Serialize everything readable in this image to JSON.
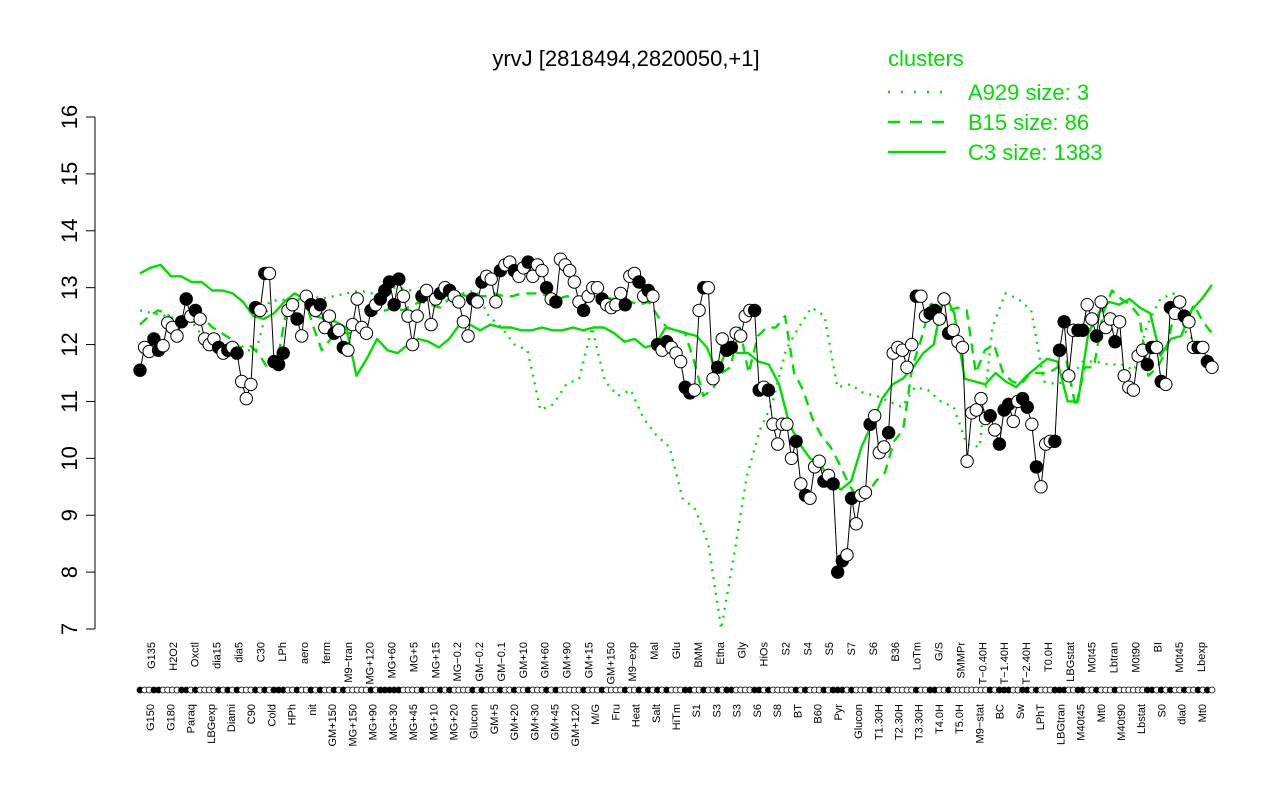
{
  "colors": {
    "series": "#00dd00",
    "points_filled": "#000000",
    "points_open": "#ffffff",
    "axis": "#000000"
  },
  "chart_data": {
    "type": "line",
    "title": "yrvJ [2818494,2820050,+1]",
    "xlabel": "",
    "ylabel": "",
    "ylim": [
      7,
      16
    ],
    "yticks": [
      7,
      8,
      9,
      10,
      11,
      12,
      13,
      14,
      15,
      16
    ],
    "legend": {
      "title": "clusters",
      "placement": "top-right",
      "entries": [
        {
          "label": "A929 size: 3",
          "style": "dotted"
        },
        {
          "label": "B15 size: 86",
          "style": "dashed"
        },
        {
          "label": "C3 size: 1383",
          "style": "solid"
        }
      ]
    },
    "x_tick_labels_top": [
      "G135",
      "H2O2",
      "Oxctl",
      "dia15",
      "dia5",
      "C30",
      "LPh",
      "aero",
      "ferm",
      "M9−tran",
      "MG+120",
      "MG+60",
      "MG+5",
      "MG+15",
      "MG−0.2",
      "GM−0.2",
      "GM−0.1",
      "GM+10",
      "GM+60",
      "GM+90",
      "GM+15",
      "GM+150",
      "M9−exp",
      "Mal",
      "Glu",
      "BMM",
      "Etha",
      "Gly",
      "HiOs",
      "S2",
      "S4",
      "S5",
      "S7",
      "S6",
      "B36",
      "LoTm",
      "G/S",
      "SMMPr",
      "T−0.40H",
      "T−1.40H",
      "T−2.40H",
      "T0.0H",
      "LBGstat",
      "M0t45",
      "Lbtran",
      "M0t90",
      "BI",
      "M0t45",
      "Lbexp"
    ],
    "x_tick_labels_bottom": [
      "G150",
      "G180",
      "Paraq",
      "LBGexp",
      "Diami",
      "C90",
      "Cold",
      "HPh",
      "nit",
      "GM+150",
      "MG+150",
      "MG+90",
      "MG+30",
      "MG+45",
      "MG+10",
      "MG+20",
      "Glucon",
      "GM+5",
      "GM+20",
      "GM+30",
      "GM+45",
      "GM+120",
      "M/G",
      "Fru",
      "Heat",
      "Salt",
      "HiTm",
      "S1",
      "S3",
      "S3",
      "S6",
      "S8",
      "BT",
      "B60",
      "Pyr",
      "Glucon",
      "T1.30H",
      "T2.30H",
      "T3.30H",
      "T4.0H",
      "T5.0H",
      "M9−stat",
      "BC",
      "Sw",
      "LPhT",
      "LBGtran",
      "M40t45",
      "Mt0",
      "M40t90",
      "Lbstat",
      "S0",
      "dia0",
      "Mt0"
    ],
    "samples": [
      11.55,
      11.95,
      11.88,
      12.1,
      11.9,
      11.98,
      12.38,
      12.3,
      12.15,
      12.4,
      12.8,
      12.5,
      12.6,
      12.45,
      12.1,
      12.0,
      12.1,
      11.95,
      11.85,
      11.9,
      11.95,
      11.85,
      11.35,
      11.05,
      11.3,
      12.65,
      12.6,
      13.25,
      13.25,
      11.7,
      11.65,
      11.85,
      12.6,
      12.7,
      12.45,
      12.15,
      12.85,
      12.7,
      12.6,
      12.7,
      12.3,
      12.5,
      12.2,
      12.25,
      11.95,
      11.9,
      12.35,
      12.8,
      12.3,
      12.2,
      12.6,
      12.7,
      12.8,
      12.95,
      13.1,
      12.7,
      13.15,
      12.85,
      12.5,
      12.0,
      12.5,
      12.85,
      12.95,
      12.35,
      12.8,
      12.9,
      13.0,
      12.95,
      12.85,
      12.75,
      12.4,
      12.15,
      12.8,
      12.75,
      13.1,
      13.2,
      13.15,
      12.75,
      13.3,
      13.4,
      13.45,
      13.3,
      13.2,
      13.35,
      13.45,
      13.2,
      13.4,
      13.3,
      13.0,
      12.8,
      12.75,
      13.5,
      13.4,
      13.3,
      13.1,
      12.75,
      12.6,
      12.85,
      13.0,
      13.0,
      12.8,
      12.7,
      12.65,
      12.7,
      12.9,
      12.7,
      13.2,
      13.25,
      13.1,
      12.85,
      12.95,
      12.85,
      12.0,
      11.9,
      12.05,
      11.95,
      11.85,
      11.7,
      11.25,
      11.15,
      11.2,
      12.6,
      13.0,
      13.0,
      11.4,
      11.6,
      12.1,
      11.9,
      11.95,
      12.2,
      12.15,
      12.5,
      12.6,
      12.6,
      11.2,
      11.25,
      11.2,
      10.6,
      10.25,
      10.6,
      10.6,
      10.0,
      10.3,
      9.55,
      9.35,
      9.3,
      9.85,
      9.95,
      9.6,
      9.7,
      9.55,
      8.0,
      8.2,
      8.3,
      9.3,
      8.85,
      9.35,
      9.4,
      10.6,
      10.75,
      10.1,
      10.2,
      10.45,
      11.85,
      11.95,
      11.9,
      11.6,
      12.0,
      12.85,
      12.85,
      12.5,
      12.55,
      12.6,
      12.45,
      12.8,
      12.2,
      12.25,
      12.05,
      11.95,
      9.95,
      10.8,
      10.85,
      11.05,
      10.7,
      10.75,
      10.5,
      10.25,
      10.85,
      10.95,
      10.65,
      11.0,
      11.05,
      10.9,
      10.6,
      9.85,
      9.5,
      10.25,
      10.3,
      10.3,
      11.9,
      12.4,
      11.45,
      12.25,
      12.25,
      12.25,
      12.7,
      12.45,
      12.15,
      12.75,
      12.3,
      12.45,
      12.05,
      12.4,
      11.45,
      11.25,
      11.2,
      11.8,
      11.9,
      11.65,
      11.95,
      11.95,
      11.35,
      11.3,
      12.65,
      12.55,
      12.75,
      12.5,
      12.4,
      11.95,
      11.95,
      11.95,
      11.7,
      11.6
    ],
    "open_markers": [
      1,
      2,
      5,
      6,
      7,
      8,
      11,
      13,
      14,
      15,
      16,
      18,
      20,
      22,
      23,
      24,
      26,
      28,
      32,
      33,
      35,
      36,
      38,
      40,
      41,
      43,
      45,
      46,
      47,
      48,
      49,
      51,
      57,
      58,
      59,
      60,
      62,
      63,
      64,
      66,
      68,
      69,
      70,
      71,
      73,
      75,
      76,
      77,
      79,
      80,
      82,
      83,
      85,
      86,
      87,
      89,
      91,
      92,
      93,
      94,
      95,
      97,
      98,
      99,
      101,
      102,
      103,
      104,
      106,
      107,
      109,
      111,
      113,
      115,
      116,
      117,
      120,
      121,
      123,
      124,
      126,
      129,
      130,
      131,
      132,
      135,
      137,
      138,
      139,
      140,
      141,
      143,
      145,
      146,
      147,
      149,
      153,
      155,
      156,
      157,
      159,
      160,
      161,
      163,
      164,
      165,
      166,
      167,
      169,
      170,
      173,
      174,
      176,
      177,
      178,
      179,
      180,
      181,
      182,
      183,
      185,
      189,
      190,
      193,
      195,
      196,
      197,
      201,
      202,
      205,
      206,
      208,
      209,
      210,
      212,
      213,
      214,
      215,
      216,
      217,
      220,
      222,
      224,
      225,
      227,
      228,
      230,
      232,
      233,
      234,
      235,
      236,
      237
    ],
    "cluster_B15": [
      12.35,
      12.5,
      12.6,
      12.55,
      12.3,
      12.4,
      12.4,
      12.45,
      12.3,
      12.2,
      12.1,
      11.95,
      12.0,
      11.85,
      11.6,
      11.6,
      12.5,
      12.7,
      12.9,
      12.35,
      11.9,
      12.1,
      12.2,
      12.2,
      12.3,
      12.5,
      12.55,
      12.6,
      12.65,
      12.6,
      12.7,
      12.75,
      12.7,
      12.65,
      12.8,
      12.9,
      12.85,
      12.85,
      12.85,
      12.9,
      12.85,
      12.85,
      12.9,
      12.9,
      12.9,
      12.85,
      12.8,
      12.85,
      12.8,
      12.8,
      12.85,
      12.85,
      12.8,
      12.8,
      12.75,
      12.7,
      12.75,
      12.5,
      12.3,
      12.25,
      12.2,
      11.7,
      11.1,
      11.2,
      11.5,
      11.6,
      12.3,
      11.5,
      12.15,
      12.3,
      12.3,
      12.5,
      11.5,
      11.2,
      10.7,
      10.4,
      10.2,
      9.9,
      9.55,
      9.3,
      9.35,
      9.6,
      9.75,
      10.3,
      10.5,
      11.6,
      12.1,
      12.7,
      12.8,
      12.6,
      12.65,
      12.6,
      11.5,
      11.9,
      12.0,
      11.5,
      11.35,
      11.3,
      11.5,
      11.5,
      11.5,
      11.6,
      11.7,
      10.9,
      11.6,
      11.6,
      12.55,
      12.95,
      12.8,
      12.7,
      12.5,
      11.45,
      11.6,
      11.9,
      12.7,
      12.3,
      12.7,
      12.4,
      12.2
    ],
    "cluster_C3": [
      13.25,
      13.35,
      13.4,
      13.2,
      13.2,
      13.1,
      13.1,
      12.95,
      12.95,
      12.9,
      12.75,
      12.5,
      12.45,
      12.55,
      12.75,
      12.9,
      12.8,
      12.5,
      12.45,
      12.4,
      12.3,
      11.45,
      11.75,
      12.1,
      11.9,
      11.85,
      12.0,
      12.1,
      12.05,
      11.95,
      12.1,
      12.35,
      12.35,
      12.25,
      12.35,
      12.3,
      12.3,
      12.25,
      12.25,
      12.3,
      12.25,
      12.25,
      12.3,
      12.25,
      12.3,
      12.3,
      12.2,
      12.05,
      12.1,
      11.95,
      12.0,
      12.3,
      12.25,
      12.2,
      12.15,
      11.95,
      11.5,
      11.95,
      11.85,
      11.85,
      11.7,
      11.65,
      11.3,
      10.6,
      10.25,
      10.0,
      9.9,
      9.6,
      9.45,
      9.6,
      10.2,
      10.6,
      11.05,
      11.3,
      11.4,
      11.6,
      11.85,
      12.0,
      12.9,
      12.55,
      11.4,
      11.35,
      11.3,
      11.5,
      11.35,
      11.25,
      11.45,
      11.6,
      11.75,
      11.7,
      11.0,
      11.0,
      12.2,
      12.55,
      12.75,
      12.7,
      12.8,
      12.65,
      12.55,
      11.8,
      12.1,
      12.15,
      12.6,
      12.8,
      13.05
    ],
    "cluster_A929": [
      12.6,
      12.55,
      12.5,
      12.45,
      12.4,
      12.1,
      12.0,
      11.9,
      11.9,
      11.9,
      12.75,
      12.8,
      12.7,
      12.9,
      12.8,
      12.85,
      12.9,
      12.95,
      12.9,
      13.0,
      13.0,
      12.95,
      12.9,
      12.8,
      12.9,
      12.9,
      12.95,
      12.5,
      12.3,
      12.0,
      11.9,
      10.85,
      10.95,
      11.3,
      11.4,
      12.3,
      11.35,
      11.1,
      11.2,
      10.7,
      10.4,
      10.2,
      9.3,
      9.1,
      8.5,
      7.0,
      8.3,
      9.7,
      10.5,
      11.0,
      11.9,
      12.3,
      12.65,
      12.5,
      11.25,
      11.3,
      11.15,
      11.1,
      11.0,
      10.9,
      11.25,
      11.2,
      11.0,
      10.9,
      10.25,
      10.2,
      12.3,
      12.9,
      12.8,
      12.6,
      11.35,
      11.3,
      11.4,
      11.7,
      11.7,
      11.65,
      11.65,
      11.55,
      12.35,
      12.8,
      12.9,
      12.2,
      12.0,
      11.7
    ]
  }
}
